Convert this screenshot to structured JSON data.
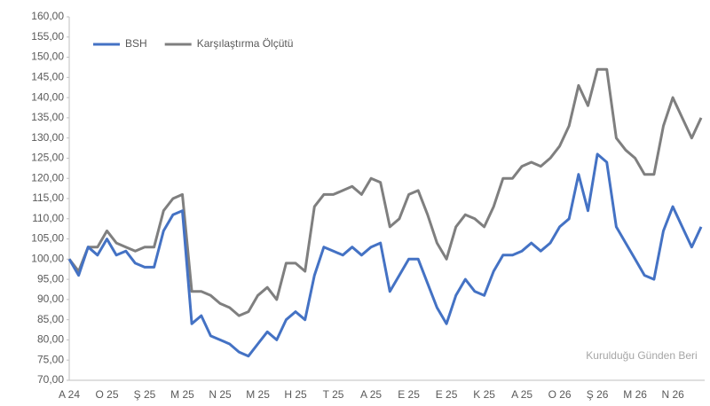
{
  "chart_data": {
    "type": "line",
    "annotation": "Kurulduğu Günden Beri",
    "categories": [
      "A 24",
      null,
      null,
      null,
      "O 25",
      null,
      null,
      null,
      "Ş 25",
      null,
      null,
      null,
      "M 25",
      null,
      null,
      null,
      "N 25",
      null,
      null,
      null,
      "M 25",
      null,
      null,
      null,
      "H 25",
      null,
      null,
      null,
      "T 25",
      null,
      null,
      null,
      "A 25",
      null,
      null,
      null,
      "E 25",
      null,
      null,
      null,
      "E 25",
      null,
      null,
      null,
      "K 25",
      null,
      null,
      null,
      "A 25",
      null,
      null,
      null,
      "O 26",
      null,
      null,
      null,
      "Ş 26",
      null,
      null,
      null,
      "M 26",
      null,
      null,
      null,
      "N 26",
      null,
      null,
      null
    ],
    "series": [
      {
        "name": "BSH",
        "color": "#4472c4",
        "values": [
          100,
          96,
          103,
          101,
          105,
          101,
          102,
          99,
          98,
          98,
          107,
          111,
          112,
          84,
          86,
          81,
          80,
          79,
          77,
          76,
          79,
          82,
          80,
          85,
          87,
          85,
          96,
          103,
          102,
          101,
          103,
          101,
          103,
          104,
          92,
          96,
          100,
          100,
          94,
          88,
          84,
          91,
          95,
          92,
          91,
          97,
          101,
          101,
          102,
          104,
          102,
          104,
          108,
          110,
          121,
          112,
          126,
          124,
          108,
          104,
          100,
          96,
          95,
          107,
          113,
          108,
          103,
          108
        ]
      },
      {
        "name": "Karşılaştırma Ölçütü",
        "color": "#7f7f7f",
        "values": [
          100,
          97,
          103,
          103,
          107,
          104,
          103,
          102,
          103,
          103,
          112,
          115,
          116,
          92,
          92,
          91,
          89,
          88,
          86,
          87,
          91,
          93,
          90,
          99,
          99,
          97,
          113,
          116,
          116,
          117,
          118,
          116,
          120,
          119,
          108,
          110,
          116,
          117,
          111,
          104,
          100,
          108,
          111,
          110,
          108,
          113,
          120,
          120,
          123,
          124,
          123,
          125,
          128,
          133,
          143,
          138,
          147,
          147,
          130,
          127,
          125,
          121,
          121,
          133,
          140,
          135,
          130,
          135
        ]
      }
    ],
    "ylim": [
      70,
      160
    ],
    "yticks": [
      {
        "value": 70,
        "label": "70,00"
      },
      {
        "value": 75,
        "label": "75,00"
      },
      {
        "value": 80,
        "label": "80,00"
      },
      {
        "value": 85,
        "label": "85,00"
      },
      {
        "value": 90,
        "label": "90,00"
      },
      {
        "value": 95,
        "label": "95,00"
      },
      {
        "value": 100,
        "label": "100,00"
      },
      {
        "value": 105,
        "label": "105,00"
      },
      {
        "value": 110,
        "label": "110,00"
      },
      {
        "value": 115,
        "label": "115,00"
      },
      {
        "value": 120,
        "label": "120,00"
      },
      {
        "value": 125,
        "label": "125,00"
      },
      {
        "value": 130,
        "label": "130,00"
      },
      {
        "value": 135,
        "label": "135,00"
      },
      {
        "value": 140,
        "label": "140,00"
      },
      {
        "value": 145,
        "label": "145,00"
      },
      {
        "value": 150,
        "label": "150,00"
      },
      {
        "value": 155,
        "label": "155,00"
      },
      {
        "value": 160,
        "label": "160,00"
      }
    ],
    "grid": false,
    "legend": "top-left"
  }
}
